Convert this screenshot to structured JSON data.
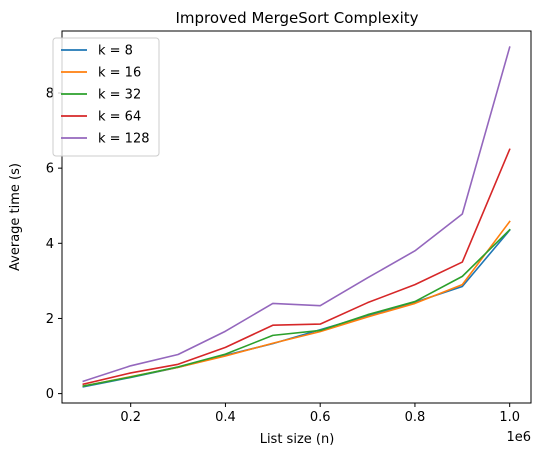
{
  "chart_data": {
    "type": "line",
    "title": "Improved MergeSort Complexity",
    "xlabel": "List size (n)",
    "ylabel": "Average time (s)",
    "x_offset_label": "1e6",
    "xlim": [
      0.055,
      1.045
    ],
    "ylim": [
      -0.25,
      9.65
    ],
    "xticks": [
      0.2,
      0.4,
      0.6,
      0.8,
      1.0
    ],
    "xtick_labels": [
      "0.2",
      "0.4",
      "0.6",
      "0.8",
      "1.0"
    ],
    "yticks": [
      0,
      2,
      4,
      6,
      8
    ],
    "ytick_labels": [
      "0",
      "2",
      "4",
      "6",
      "8"
    ],
    "grid": false,
    "legend_position": "top-left",
    "x": [
      0.1,
      0.2,
      0.3,
      0.4,
      0.5,
      0.6,
      0.7,
      0.8,
      0.9,
      1.0
    ],
    "series": [
      {
        "name": "k = 8",
        "color": "#1f77b4",
        "values": [
          0.18,
          0.43,
          0.7,
          1.02,
          1.33,
          1.7,
          2.07,
          2.43,
          2.85,
          4.35
        ]
      },
      {
        "name": "k = 16",
        "color": "#ff7f0e",
        "values": [
          0.2,
          0.45,
          0.7,
          1.0,
          1.34,
          1.65,
          2.04,
          2.4,
          2.9,
          4.58
        ]
      },
      {
        "name": "k = 32",
        "color": "#2ca02c",
        "values": [
          0.2,
          0.44,
          0.71,
          1.05,
          1.55,
          1.68,
          2.1,
          2.45,
          3.12,
          4.36
        ]
      },
      {
        "name": "k = 64",
        "color": "#d62728",
        "values": [
          0.25,
          0.55,
          0.78,
          1.23,
          1.82,
          1.85,
          2.42,
          2.9,
          3.5,
          6.5
        ]
      },
      {
        "name": "k = 128",
        "color": "#9467bd",
        "values": [
          0.33,
          0.74,
          1.04,
          1.66,
          2.4,
          2.34,
          3.08,
          3.8,
          4.78,
          9.22
        ]
      }
    ]
  }
}
